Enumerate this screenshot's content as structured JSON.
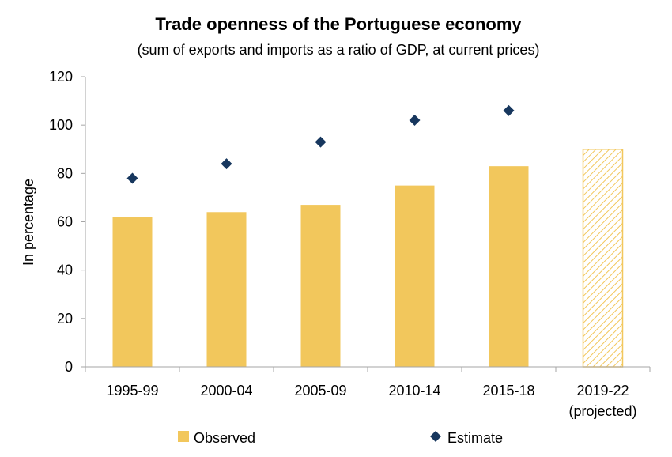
{
  "chart_data": {
    "type": "bar",
    "title": "Trade openness of the Portuguese economy",
    "subtitle": "(sum of exports and imports as a ratio of GDP, at current prices)",
    "ylabel": "In percentage",
    "xlabel": "",
    "ylim": [
      0,
      120
    ],
    "yticks": [
      0,
      20,
      40,
      60,
      80,
      100,
      120
    ],
    "grid": false,
    "legend_position": "bottom",
    "categories": [
      [
        "1995-99"
      ],
      [
        "2000-04"
      ],
      [
        "2005-09"
      ],
      [
        "2010-14"
      ],
      [
        "2015-18"
      ],
      [
        "2019-22",
        "(projected)"
      ]
    ],
    "series": [
      {
        "name": "Observed",
        "kind": "bar",
        "color": "#F2C75C",
        "values": [
          62,
          64,
          67,
          75,
          83,
          90
        ],
        "hatched_categories": [
          "2019-22"
        ]
      },
      {
        "name": "Estimate",
        "kind": "marker",
        "marker": "diamond",
        "color": "#17375E",
        "values": [
          78,
          84,
          93,
          102,
          106,
          null
        ]
      }
    ]
  }
}
